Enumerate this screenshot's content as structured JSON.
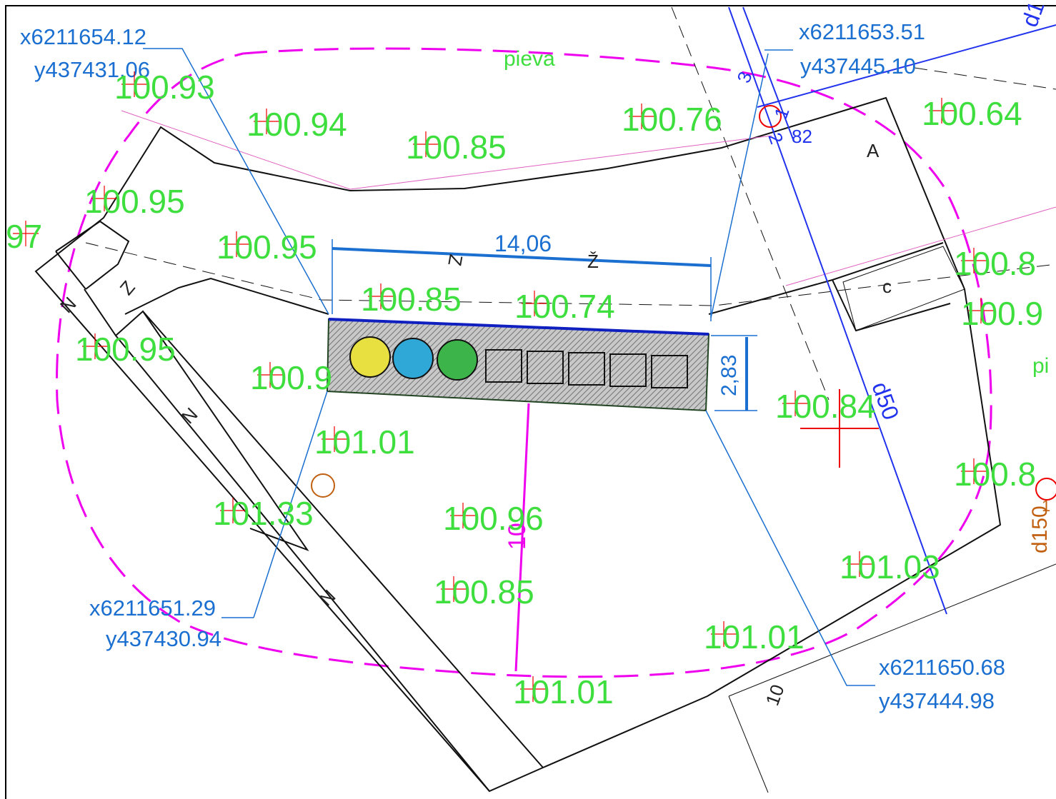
{
  "coordinates": [
    {
      "x": "x6211654.12",
      "y": "y437431.06"
    },
    {
      "x": "x6211653.51",
      "y": "y437445.10"
    },
    {
      "x": "x6211651.29",
      "y": "y437430.94"
    },
    {
      "x": "x6211650.68",
      "y": "y437444.98"
    }
  ],
  "dimensions": {
    "length": "14,06",
    "width": "2,83",
    "offset": "10"
  },
  "elevations": [
    "100.93",
    "100.94",
    "100.85",
    "100.76",
    "100.64",
    "100.95",
    "97",
    "100.95",
    "100.85",
    "100.74",
    "100.95",
    "100.9",
    "100.84",
    "101.01",
    "101.33",
    "100.96",
    "100.85",
    "101.03",
    "101.01",
    "101.01",
    "100.8",
    "100.9",
    "100.8"
  ],
  "labels": {
    "meadow": "pieva",
    "meadow_partial": "pi",
    "a": "A",
    "c": "c",
    "z_caron": "Ž",
    "z": "Z",
    "z_small": "Z",
    "n1": "N",
    "n2": "N",
    "n3": "N",
    "ten": "10",
    "d50": "d50",
    "d1_partial": "d1",
    "d150": "d150",
    "one_orange": "1",
    "n82": "82",
    "one": "1",
    "two": "2",
    "three": "3"
  }
}
